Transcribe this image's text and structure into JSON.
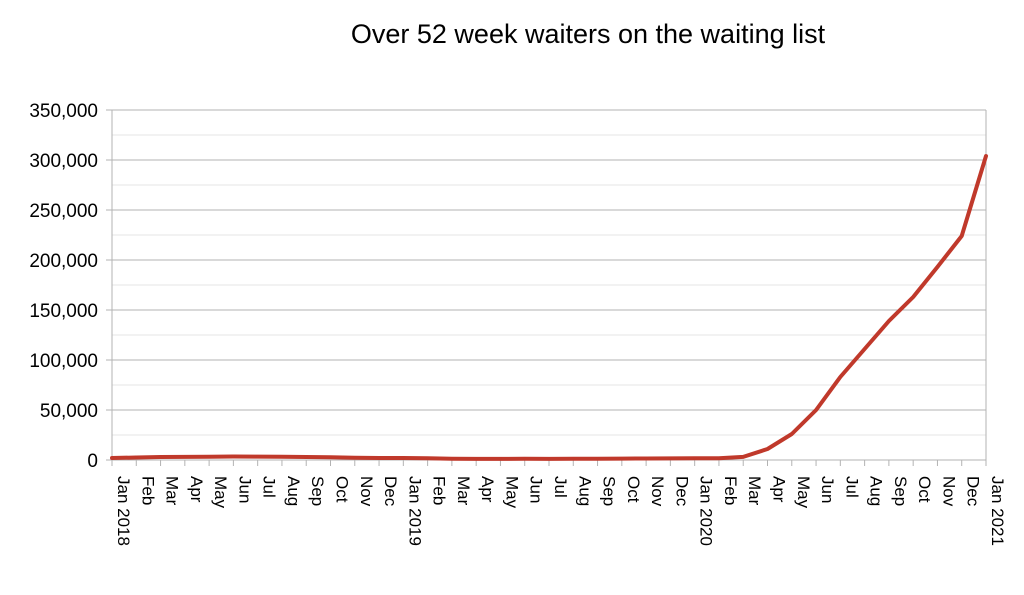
{
  "chart_data": {
    "type": "line",
    "title": "Over 52 week waiters on the waiting list",
    "xlabel": "",
    "ylabel": "",
    "ylim": [
      0,
      350000
    ],
    "yticks": [
      "0",
      "50,000",
      "100,000",
      "150,000",
      "200,000",
      "250,000",
      "300,000",
      "350,000"
    ],
    "grid": true,
    "legend": "none",
    "line_color": "#c0392b",
    "categories": [
      "Jan 2018",
      "Feb",
      "Mar",
      "Apr",
      "May",
      "Jun",
      "Jul",
      "Aug",
      "Sep",
      "Oct",
      "Nov",
      "Dec",
      "Jan 2019",
      "Feb",
      "Mar",
      "Apr",
      "May",
      "Jun",
      "Jul",
      "Aug",
      "Sep",
      "Oct",
      "Nov",
      "Dec",
      "Jan 2020",
      "Feb",
      "Mar",
      "Apr",
      "May",
      "Jun",
      "Jul",
      "Aug",
      "Sep",
      "Oct",
      "Nov",
      "Dec",
      "Jan 2021"
    ],
    "series": [
      {
        "values": [
          2000,
          2500,
          3000,
          3100,
          3200,
          3500,
          3400,
          3300,
          3000,
          2800,
          2300,
          2000,
          2000,
          1800,
          1200,
          1100,
          1100,
          1200,
          1100,
          1300,
          1300,
          1400,
          1500,
          1600,
          1800,
          1700,
          3100,
          11000,
          26000,
          50000,
          83000,
          111000,
          139000,
          163000,
          193000,
          224000,
          304000
        ]
      }
    ]
  }
}
